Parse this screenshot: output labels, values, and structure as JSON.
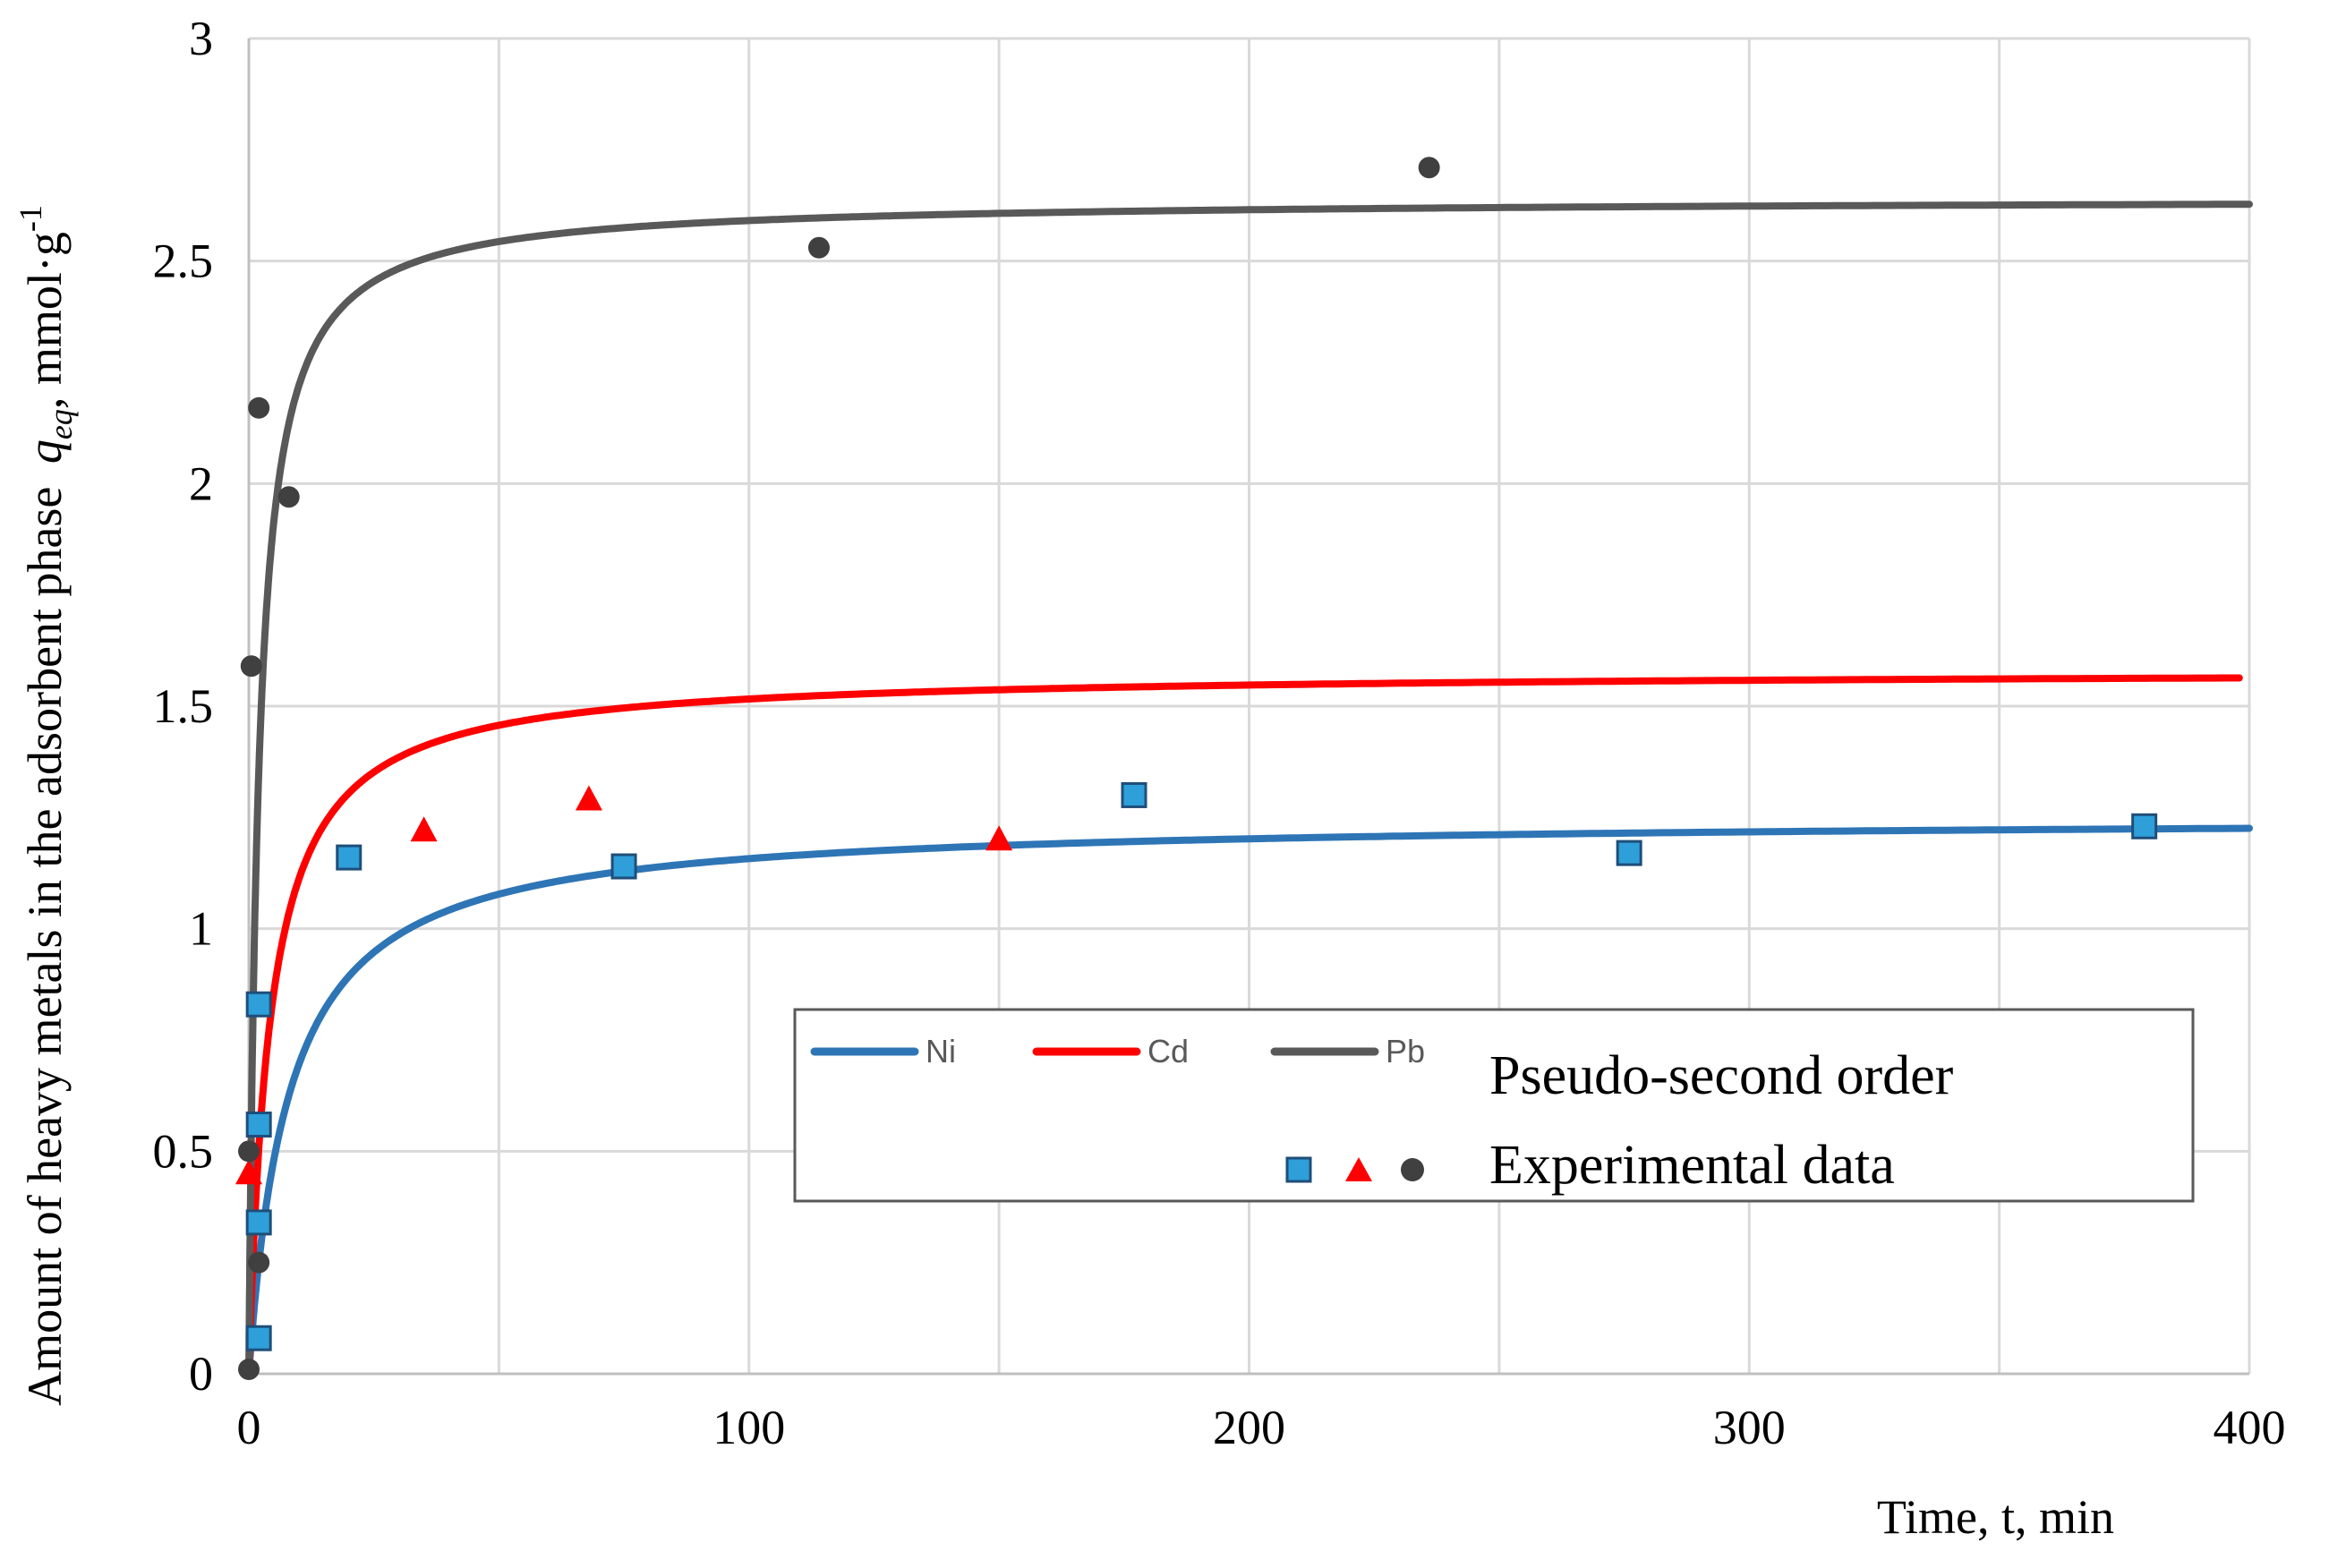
{
  "chart_data": {
    "type": "line",
    "xlabel": "Time, t, min",
    "ylabel_prefix": "Amount of heavy metals in the adsorbent phase",
    "ylabel_var": "q",
    "ylabel_sub": "eq",
    "ylabel_units": ", mmol·g",
    "ylabel_sup": "-1",
    "xlim": [
      0,
      400
    ],
    "ylim": [
      0,
      3
    ],
    "x_ticks": [
      0,
      100,
      200,
      300,
      400
    ],
    "x_tick_labels": [
      "0",
      "100",
      "200",
      "300",
      "400"
    ],
    "y_ticks": [
      0,
      0.5,
      1,
      1.5,
      2,
      2.5,
      3
    ],
    "y_tick_labels": [
      "0",
      "0.5",
      "1",
      "1.5",
      "2",
      "2.5",
      "3"
    ],
    "grid": true,
    "colors": {
      "Ni": "#2e75b6",
      "Cd": "#ff0000",
      "Pb": "#595959",
      "Ni_marker": "#2e9fd9"
    },
    "series": [
      {
        "name": "Ni",
        "kind": "model",
        "model": "pseudo-second-order",
        "qe": 1.25,
        "k": 0.1,
        "x_end": 400
      },
      {
        "name": "Cd",
        "kind": "model",
        "model": "pseudo-second-order",
        "qe": 1.58,
        "k": 0.15,
        "x_end": 398
      },
      {
        "name": "Pb",
        "kind": "model",
        "model": "pseudo-second-order",
        "qe": 2.64,
        "k": 0.2,
        "x_end": 400
      },
      {
        "name": "Ni",
        "kind": "experimental",
        "marker": "square",
        "x": [
          2,
          2,
          2,
          2,
          20,
          75,
          177,
          276,
          379
        ],
        "y": [
          0.08,
          0.34,
          0.56,
          0.83,
          1.16,
          1.14,
          1.3,
          1.17,
          1.23
        ]
      },
      {
        "name": "Cd",
        "kind": "experimental",
        "marker": "triangle",
        "x": [
          0,
          35,
          68,
          150
        ],
        "y": [
          0.45,
          1.22,
          1.29,
          1.2
        ]
      },
      {
        "name": "Pb",
        "kind": "experimental",
        "marker": "circle",
        "x": [
          0,
          0,
          0.5,
          2,
          2,
          8,
          114,
          236
        ],
        "y": [
          0.01,
          0.5,
          1.59,
          2.17,
          0.25,
          1.97,
          2.53,
          2.71
        ]
      }
    ],
    "legend": {
      "position": "center-right",
      "entries": [
        "Ni",
        "Cd",
        "Pb"
      ],
      "model_label": "Pseudo-second order",
      "experimental_label": "Experimental data"
    }
  }
}
